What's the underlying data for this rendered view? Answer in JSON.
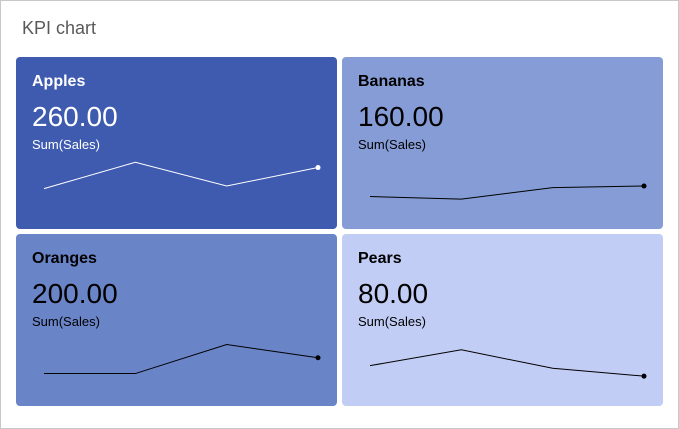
{
  "header": {
    "title": "KPI chart"
  },
  "tiles": [
    {
      "label": "Apples",
      "value": "260.00",
      "measure": "Sum(Sales)",
      "color": "#3f5bb0",
      "text_color": "#ffffff",
      "line_color": "#ffffff"
    },
    {
      "label": "Bananas",
      "value": "160.00",
      "measure": "Sum(Sales)",
      "color": "#869cd6",
      "text_color": "#000000",
      "line_color": "#000000"
    },
    {
      "label": "Oranges",
      "value": "200.00",
      "measure": "Sum(Sales)",
      "color": "#6a84c8",
      "text_color": "#000000",
      "line_color": "#000000"
    },
    {
      "label": "Pears",
      "value": "80.00",
      "measure": "Sum(Sales)",
      "color": "#c2cdf5",
      "text_color": "#000000",
      "line_color": "#000000"
    }
  ],
  "chart_data": {
    "type": "line",
    "x": [
      1,
      2,
      3,
      4
    ],
    "series": [
      {
        "name": "Apples",
        "values": [
          50,
          100,
          55,
          90
        ]
      },
      {
        "name": "Bananas",
        "values": [
          35,
          30,
          52,
          55
        ]
      },
      {
        "name": "Oranges",
        "values": [
          35,
          35,
          90,
          65
        ]
      },
      {
        "name": "Pears",
        "values": [
          50,
          80,
          45,
          30
        ]
      }
    ],
    "ylim": [
      0,
      110
    ]
  }
}
